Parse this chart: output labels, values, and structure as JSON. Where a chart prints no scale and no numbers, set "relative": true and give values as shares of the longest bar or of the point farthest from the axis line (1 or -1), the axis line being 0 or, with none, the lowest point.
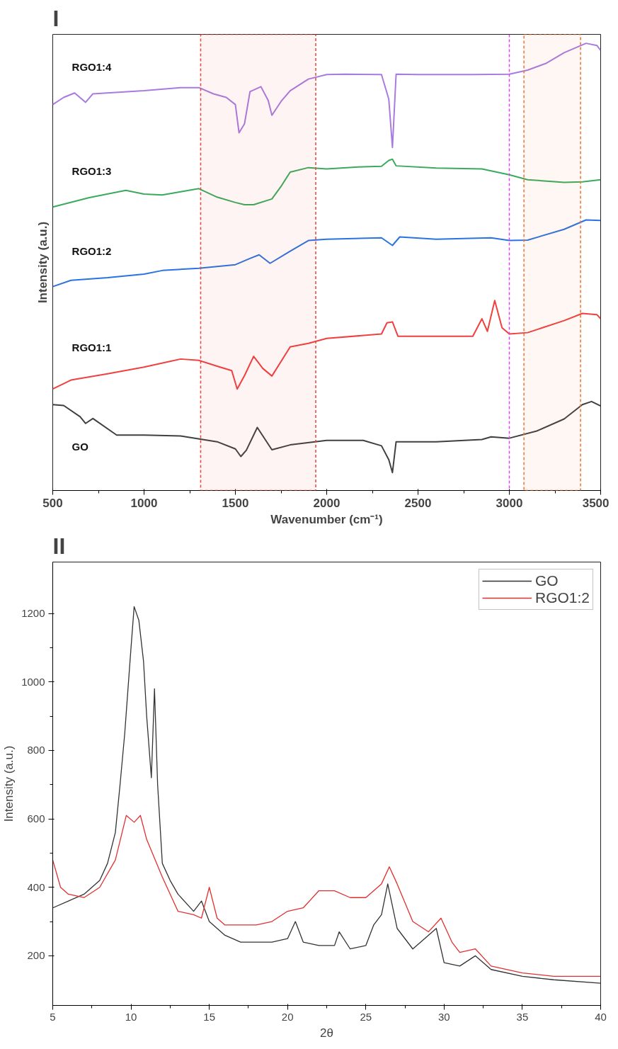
{
  "chart_data": [
    {
      "type": "line",
      "title": "I",
      "xlabel": "Wavenumber (cm⁻¹)",
      "ylabel": "Intensity (a.u.)",
      "relative": true,
      "xlim": [
        500,
        3500
      ],
      "xticks": [
        500,
        1000,
        1500,
        2000,
        2500,
        3000,
        3500
      ],
      "grid": false,
      "ref_lines": [
        {
          "axis": "x",
          "value": 3000,
          "color": "#e040f0",
          "line_style": "dashed"
        }
      ],
      "bands": [
        {
          "axis": "x",
          "from": 1310,
          "to": 1940,
          "color": "#e8453a"
        },
        {
          "axis": "x",
          "from": 3080,
          "to": 3390,
          "color": "#f07030"
        }
      ],
      "series": [
        {
          "name": "RGO1:4",
          "color": "#a87be0",
          "x": [
            500,
            560,
            620,
            680,
            720,
            1000,
            1200,
            1300,
            1380,
            1450,
            1500,
            1520,
            1550,
            1580,
            1640,
            1680,
            1700,
            1750,
            1800,
            1900,
            2000,
            2100,
            2300,
            2340,
            2360,
            2380,
            2500,
            2800,
            3000,
            3100,
            3200,
            3300,
            3420,
            3480,
            3500
          ],
          "values": [
            0.863,
            0.879,
            0.889,
            0.868,
            0.887,
            0.894,
            0.901,
            0.901,
            0.887,
            0.879,
            0.863,
            0.8,
            0.82,
            0.892,
            0.903,
            0.872,
            0.839,
            0.87,
            0.894,
            0.92,
            0.93,
            0.931,
            0.93,
            0.875,
            0.767,
            0.931,
            0.93,
            0.93,
            0.931,
            0.94,
            0.955,
            0.979,
            1.0,
            0.995,
            0.984
          ]
        },
        {
          "name": "RGO1:3",
          "color": "#3aaa5c",
          "x": [
            500,
            700,
            900,
            1000,
            1100,
            1200,
            1300,
            1400,
            1500,
            1550,
            1600,
            1700,
            1750,
            1800,
            1900,
            2000,
            2200,
            2300,
            2340,
            2360,
            2380,
            2600,
            2850,
            3000,
            3100,
            3300,
            3400,
            3500
          ],
          "values": [
            0.634,
            0.655,
            0.671,
            0.663,
            0.661,
            0.668,
            0.675,
            0.656,
            0.644,
            0.639,
            0.639,
            0.652,
            0.68,
            0.712,
            0.722,
            0.719,
            0.724,
            0.725,
            0.738,
            0.741,
            0.726,
            0.721,
            0.719,
            0.706,
            0.695,
            0.689,
            0.69,
            0.695
          ]
        },
        {
          "name": "RGO1:2",
          "color": "#2a73e0",
          "x": [
            500,
            600,
            800,
            1000,
            1100,
            1300,
            1500,
            1580,
            1630,
            1690,
            1800,
            1900,
            2000,
            2300,
            2360,
            2400,
            2600,
            2900,
            3000,
            3100,
            3300,
            3420,
            3500
          ],
          "values": [
            0.456,
            0.47,
            0.476,
            0.484,
            0.492,
            0.497,
            0.505,
            0.519,
            0.527,
            0.508,
            0.535,
            0.559,
            0.562,
            0.565,
            0.548,
            0.567,
            0.562,
            0.565,
            0.559,
            0.56,
            0.584,
            0.605,
            0.604
          ]
        },
        {
          "name": "RGO1:1",
          "color": "#f04040",
          "x": [
            500,
            600,
            800,
            1000,
            1200,
            1300,
            1400,
            1480,
            1510,
            1550,
            1600,
            1650,
            1700,
            1800,
            1900,
            2000,
            2300,
            2330,
            2360,
            2390,
            2800,
            2850,
            2880,
            2920,
            2960,
            3000,
            3100,
            3300,
            3400,
            3480,
            3500
          ],
          "values": [
            0.227,
            0.247,
            0.261,
            0.276,
            0.294,
            0.291,
            0.278,
            0.268,
            0.227,
            0.257,
            0.3,
            0.273,
            0.256,
            0.321,
            0.329,
            0.34,
            0.35,
            0.375,
            0.377,
            0.345,
            0.345,
            0.384,
            0.356,
            0.425,
            0.364,
            0.35,
            0.353,
            0.38,
            0.396,
            0.393,
            0.384
          ]
        },
        {
          "name": "GO",
          "color": "#404040",
          "x": [
            500,
            560,
            650,
            680,
            720,
            850,
            1000,
            1200,
            1400,
            1500,
            1530,
            1560,
            1620,
            1700,
            1800,
            2000,
            2200,
            2300,
            2340,
            2360,
            2380,
            2600,
            2850,
            2900,
            3000,
            3150,
            3300,
            3400,
            3450,
            3500
          ],
          "values": [
            0.192,
            0.19,
            0.165,
            0.15,
            0.161,
            0.124,
            0.124,
            0.122,
            0.109,
            0.093,
            0.076,
            0.09,
            0.141,
            0.091,
            0.102,
            0.112,
            0.112,
            0.1,
            0.069,
            0.04,
            0.109,
            0.109,
            0.114,
            0.12,
            0.117,
            0.133,
            0.16,
            0.192,
            0.199,
            0.189
          ]
        }
      ]
    },
    {
      "type": "line",
      "title": "II",
      "xlabel": "2θ",
      "ylabel": "Intensity (a.u.)",
      "xlim": [
        5,
        40
      ],
      "xticks": [
        5,
        10,
        15,
        20,
        25,
        30,
        35,
        40
      ],
      "ylim": [
        55,
        1350
      ],
      "yticks": [
        200,
        400,
        600,
        800,
        1000,
        1200
      ],
      "grid": false,
      "legend": "top right",
      "series": [
        {
          "name": "GO",
          "color": "#333333",
          "x": [
            5,
            6,
            7,
            8,
            8.5,
            9,
            9.3,
            9.6,
            10,
            10.2,
            10.5,
            10.8,
            11,
            11.3,
            11.5,
            11.7,
            12,
            12.5,
            13,
            14,
            14.5,
            15,
            16,
            17,
            18,
            19,
            20,
            20.5,
            21,
            22,
            23,
            23.3,
            24,
            25,
            25.5,
            26,
            26.4,
            27,
            28,
            29,
            29.5,
            30,
            31,
            32,
            33,
            35,
            37,
            40
          ],
          "values": [
            340,
            360,
            380,
            420,
            470,
            560,
            700,
            850,
            1100,
            1220,
            1180,
            1060,
            900,
            720,
            980,
            700,
            470,
            420,
            380,
            330,
            360,
            300,
            260,
            240,
            240,
            240,
            250,
            300,
            240,
            230,
            230,
            270,
            220,
            230,
            290,
            320,
            410,
            280,
            220,
            260,
            280,
            180,
            170,
            200,
            160,
            140,
            130,
            120
          ]
        },
        {
          "name": "RGO1:2",
          "color": "#e03030",
          "x": [
            5,
            5.5,
            6,
            7,
            8,
            9,
            9.7,
            10.2,
            10.6,
            11,
            12,
            13,
            14,
            14.5,
            15,
            15.5,
            16,
            17,
            18,
            19,
            20,
            21,
            22,
            23,
            24,
            25,
            26,
            26.5,
            27,
            28,
            29,
            29.8,
            30.5,
            31,
            32,
            33,
            35,
            37,
            40
          ],
          "values": [
            480,
            400,
            380,
            370,
            400,
            480,
            610,
            590,
            610,
            540,
            430,
            330,
            320,
            310,
            400,
            310,
            290,
            290,
            290,
            300,
            330,
            340,
            390,
            390,
            370,
            370,
            410,
            460,
            410,
            300,
            270,
            310,
            240,
            210,
            220,
            170,
            150,
            140,
            140
          ]
        }
      ]
    }
  ]
}
